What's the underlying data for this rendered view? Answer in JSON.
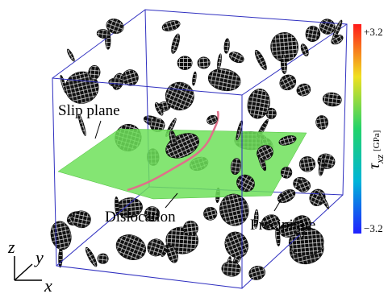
{
  "labels": {
    "slip_plane": "Slip plane",
    "dislocation": "Dislocation",
    "precipitate": "Precipitate"
  },
  "axes": {
    "z": "z",
    "y": "y",
    "x": "x"
  },
  "colorbar": {
    "symbol": "τ",
    "subscript": "xz",
    "unit": "[GPa]",
    "max_label": "+3.2",
    "min_label": "−3.2"
  }
}
